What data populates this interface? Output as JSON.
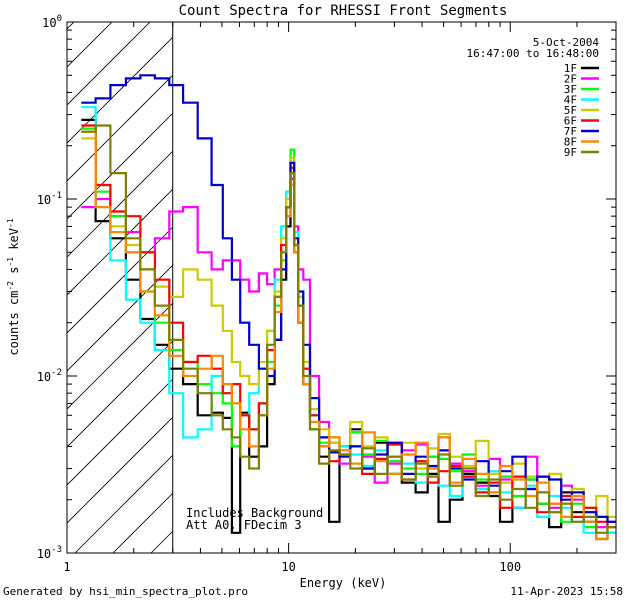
{
  "chart_data": {
    "type": "line",
    "title": "Count Spectra for RHESSI Front Segments",
    "xlabel": "Energy (keV)",
    "ylabel_parts": [
      "counts cm",
      "-2",
      " s",
      "-1",
      " keV",
      "-1"
    ],
    "x_scale": "log",
    "y_scale": "log",
    "xlim": [
      1,
      300
    ],
    "ylim": [
      0.001,
      1
    ],
    "x_ticks": [
      {
        "value": 1,
        "label": "1"
      },
      {
        "value": 10,
        "label": "10"
      },
      {
        "value": 100,
        "label": "100"
      }
    ],
    "y_ticks": [
      {
        "value": 1,
        "base": "10",
        "exp": "0"
      },
      {
        "value": 0.1,
        "base": "10",
        "exp": "-1"
      },
      {
        "value": 0.01,
        "base": "10",
        "exp": "-2"
      },
      {
        "value": 0.001,
        "base": "10",
        "exp": "-3"
      }
    ],
    "shaded_region": {
      "from": 1,
      "to": 3,
      "pattern": "diagonal-hatch"
    },
    "date": "5-Oct-2004",
    "time_range": "16:47:00 to 16:48:00",
    "annotation": [
      "Includes Background",
      "Att A0, FDecim 3"
    ],
    "legend_position": "top-right",
    "series": [
      {
        "name": "1F",
        "color": "#000000",
        "x": [
          1.25,
          1.45,
          1.7,
          2.0,
          2.3,
          2.7,
          3.1,
          3.6,
          4.2,
          4.8,
          5.3,
          5.8,
          6.3,
          7.0,
          7.7,
          8.3,
          9.0,
          9.5,
          10.0,
          10.4,
          10.8,
          11.3,
          12.0,
          13.0,
          14.5,
          16.0,
          18.0,
          20.0,
          23.0,
          26.0,
          30.0,
          35.0,
          40.0,
          45.0,
          50.0,
          57.0,
          65.0,
          75.0,
          85.0,
          95.0,
          110.0,
          125.0,
          140.0,
          160.0,
          180.0,
          200.0,
          230.0,
          260.0,
          290.0
        ],
        "values": [
          0.28,
          0.075,
          0.06,
          0.035,
          0.021,
          0.015,
          0.011,
          0.009,
          0.006,
          0.0062,
          0.0058,
          0.0013,
          0.0062,
          0.0035,
          0.004,
          0.009,
          0.016,
          0.035,
          0.07,
          0.13,
          0.05,
          0.02,
          0.009,
          0.006,
          0.0035,
          0.0015,
          0.004,
          0.005,
          0.003,
          0.0042,
          0.0028,
          0.0025,
          0.0022,
          0.0028,
          0.0015,
          0.002,
          0.0028,
          0.0025,
          0.0021,
          0.0015,
          0.0018,
          0.0026,
          0.0019,
          0.0014,
          0.0022,
          0.0017,
          0.0015,
          0.0012,
          0.0013
        ]
      },
      {
        "name": "2F",
        "color": "#ff00ff",
        "x": [
          1.25,
          1.45,
          1.7,
          2.0,
          2.3,
          2.7,
          3.1,
          3.6,
          4.2,
          4.8,
          5.3,
          5.8,
          6.3,
          7.0,
          7.7,
          8.3,
          9.0,
          9.5,
          10.0,
          10.4,
          10.8,
          11.3,
          12.0,
          13.0,
          14.5,
          16.0,
          18.0,
          20.0,
          23.0,
          26.0,
          30.0,
          35.0,
          40.0,
          45.0,
          50.0,
          57.0,
          65.0,
          75.0,
          85.0,
          95.0,
          110.0,
          125.0,
          140.0,
          160.0,
          180.0,
          200.0,
          230.0,
          260.0,
          290.0
        ],
        "values": [
          0.09,
          0.1,
          0.08,
          0.065,
          0.05,
          0.06,
          0.085,
          0.09,
          0.05,
          0.04,
          0.045,
          0.045,
          0.035,
          0.03,
          0.038,
          0.033,
          0.04,
          0.05,
          0.08,
          0.13,
          0.07,
          0.04,
          0.035,
          0.01,
          0.0055,
          0.0042,
          0.0032,
          0.0048,
          0.0035,
          0.0025,
          0.0032,
          0.0038,
          0.0041,
          0.0035,
          0.0045,
          0.0032,
          0.0029,
          0.0024,
          0.0034,
          0.0026,
          0.0021,
          0.0035,
          0.0027,
          0.0018,
          0.0024,
          0.002,
          0.0017,
          0.0014,
          0.0015
        ]
      },
      {
        "name": "3F",
        "color": "#00ff00",
        "x": [
          1.25,
          1.45,
          1.7,
          2.0,
          2.3,
          2.7,
          3.1,
          3.6,
          4.2,
          4.8,
          5.3,
          5.8,
          6.3,
          7.0,
          7.7,
          8.3,
          9.0,
          9.5,
          10.0,
          10.4,
          10.8,
          11.3,
          12.0,
          13.0,
          14.5,
          16.0,
          18.0,
          20.0,
          23.0,
          26.0,
          30.0,
          35.0,
          40.0,
          45.0,
          50.0,
          57.0,
          65.0,
          75.0,
          85.0,
          95.0,
          110.0,
          125.0,
          140.0,
          160.0,
          180.0,
          200.0,
          230.0,
          260.0,
          290.0
        ],
        "values": [
          0.25,
          0.11,
          0.08,
          0.05,
          0.03,
          0.02,
          0.014,
          0.012,
          0.009,
          0.008,
          0.007,
          0.004,
          0.006,
          0.005,
          0.007,
          0.012,
          0.025,
          0.045,
          0.11,
          0.19,
          0.06,
          0.025,
          0.011,
          0.005,
          0.0042,
          0.0045,
          0.004,
          0.0048,
          0.0036,
          0.0043,
          0.0033,
          0.003,
          0.0028,
          0.0035,
          0.0034,
          0.0029,
          0.0036,
          0.0026,
          0.0022,
          0.0027,
          0.0021,
          0.0026,
          0.0019,
          0.0017,
          0.0015,
          0.0019,
          0.0014,
          0.0016,
          0.0013
        ]
      },
      {
        "name": "4F",
        "color": "#00ffff",
        "x": [
          1.25,
          1.45,
          1.7,
          2.0,
          2.3,
          2.7,
          3.1,
          3.6,
          4.2,
          4.8,
          5.3,
          5.8,
          6.3,
          7.0,
          7.7,
          8.3,
          9.0,
          9.5,
          10.0,
          10.4,
          10.8,
          11.3,
          12.0,
          13.0,
          14.5,
          16.0,
          18.0,
          20.0,
          23.0,
          26.0,
          30.0,
          35.0,
          40.0,
          45.0,
          50.0,
          57.0,
          65.0,
          75.0,
          85.0,
          95.0,
          110.0,
          125.0,
          140.0,
          160.0,
          180.0,
          200.0,
          230.0,
          260.0,
          290.0
        ],
        "values": [
          0.33,
          0.09,
          0.045,
          0.027,
          0.02,
          0.014,
          0.008,
          0.0045,
          0.005,
          0.01,
          0.008,
          0.007,
          0.006,
          0.008,
          0.011,
          0.018,
          0.035,
          0.07,
          0.11,
          0.17,
          0.065,
          0.03,
          0.012,
          0.006,
          0.0045,
          0.0038,
          0.004,
          0.0036,
          0.0031,
          0.0038,
          0.0028,
          0.0032,
          0.0025,
          0.003,
          0.0024,
          0.0021,
          0.0027,
          0.0023,
          0.0029,
          0.0022,
          0.0018,
          0.0024,
          0.0016,
          0.0021,
          0.0018,
          0.0015,
          0.0013,
          0.0012,
          0.0013
        ]
      },
      {
        "name": "5F",
        "color": "#cccc00",
        "x": [
          1.25,
          1.45,
          1.7,
          2.0,
          2.3,
          2.7,
          3.1,
          3.6,
          4.2,
          4.8,
          5.3,
          5.8,
          6.3,
          7.0,
          7.7,
          8.3,
          9.0,
          9.5,
          10.0,
          10.4,
          10.8,
          11.3,
          12.0,
          13.0,
          14.5,
          16.0,
          18.0,
          20.0,
          23.0,
          26.0,
          30.0,
          35.0,
          40.0,
          45.0,
          50.0,
          57.0,
          65.0,
          75.0,
          85.0,
          95.0,
          110.0,
          125.0,
          140.0,
          160.0,
          180.0,
          200.0,
          230.0,
          260.0,
          290.0
        ],
        "values": [
          0.22,
          0.12,
          0.07,
          0.055,
          0.04,
          0.032,
          0.028,
          0.04,
          0.035,
          0.025,
          0.018,
          0.012,
          0.01,
          0.009,
          0.012,
          0.018,
          0.03,
          0.06,
          0.1,
          0.17,
          0.06,
          0.028,
          0.012,
          0.0065,
          0.005,
          0.0042,
          0.0038,
          0.0055,
          0.004,
          0.0045,
          0.0035,
          0.0042,
          0.003,
          0.0039,
          0.0047,
          0.0035,
          0.0031,
          0.0043,
          0.0028,
          0.0025,
          0.0032,
          0.0027,
          0.0022,
          0.0028,
          0.0019,
          0.0023,
          0.0018,
          0.0021,
          0.0016
        ]
      },
      {
        "name": "6F",
        "color": "#ff0000",
        "x": [
          1.25,
          1.45,
          1.7,
          2.0,
          2.3,
          2.7,
          3.1,
          3.6,
          4.2,
          4.8,
          5.3,
          5.8,
          6.3,
          7.0,
          7.7,
          8.3,
          9.0,
          9.5,
          10.0,
          10.4,
          10.8,
          11.3,
          12.0,
          13.0,
          14.5,
          16.0,
          18.0,
          20.0,
          23.0,
          26.0,
          30.0,
          35.0,
          40.0,
          45.0,
          50.0,
          57.0,
          65.0,
          75.0,
          85.0,
          95.0,
          110.0,
          125.0,
          140.0,
          160.0,
          180.0,
          200.0,
          230.0,
          260.0,
          290.0
        ],
        "values": [
          0.26,
          0.12,
          0.085,
          0.08,
          0.05,
          0.035,
          0.02,
          0.012,
          0.013,
          0.011,
          0.008,
          0.009,
          0.006,
          0.005,
          0.007,
          0.014,
          0.028,
          0.055,
          0.09,
          0.15,
          0.055,
          0.025,
          0.011,
          0.006,
          0.004,
          0.0033,
          0.0036,
          0.004,
          0.0028,
          0.0034,
          0.0041,
          0.0026,
          0.0033,
          0.0025,
          0.0029,
          0.0031,
          0.0027,
          0.0022,
          0.0025,
          0.0018,
          0.0027,
          0.0023,
          0.0017,
          0.0019,
          0.0021,
          0.0016,
          0.0018,
          0.0015,
          0.0014
        ]
      },
      {
        "name": "7F",
        "color": "#0000cc",
        "x": [
          1.25,
          1.45,
          1.7,
          2.0,
          2.3,
          2.7,
          3.1,
          3.6,
          4.2,
          4.8,
          5.3,
          5.8,
          6.3,
          7.0,
          7.7,
          8.3,
          9.0,
          9.5,
          10.0,
          10.4,
          10.8,
          11.3,
          12.0,
          13.0,
          14.5,
          16.0,
          18.0,
          20.0,
          23.0,
          26.0,
          30.0,
          35.0,
          40.0,
          45.0,
          50.0,
          57.0,
          65.0,
          75.0,
          85.0,
          95.0,
          110.0,
          125.0,
          140.0,
          160.0,
          180.0,
          200.0,
          230.0,
          260.0,
          290.0
        ],
        "values": [
          0.35,
          0.37,
          0.44,
          0.48,
          0.5,
          0.48,
          0.44,
          0.35,
          0.22,
          0.12,
          0.06,
          0.035,
          0.02,
          0.015,
          0.011,
          0.01,
          0.016,
          0.04,
          0.09,
          0.16,
          0.06,
          0.03,
          0.015,
          0.0075,
          0.0045,
          0.0037,
          0.0035,
          0.004,
          0.003,
          0.0036,
          0.0042,
          0.0028,
          0.0035,
          0.0031,
          0.0038,
          0.003,
          0.0026,
          0.0033,
          0.0024,
          0.0029,
          0.0035,
          0.0023,
          0.0027,
          0.0026,
          0.002,
          0.0022,
          0.0017,
          0.0016,
          0.0015
        ]
      },
      {
        "name": "8F",
        "color": "#ff8800",
        "x": [
          1.25,
          1.45,
          1.7,
          2.0,
          2.3,
          2.7,
          3.1,
          3.6,
          4.2,
          4.8,
          5.3,
          5.8,
          6.3,
          7.0,
          7.7,
          8.3,
          9.0,
          9.5,
          10.0,
          10.4,
          10.8,
          11.3,
          12.0,
          13.0,
          14.5,
          16.0,
          18.0,
          20.0,
          23.0,
          26.0,
          30.0,
          35.0,
          40.0,
          45.0,
          50.0,
          57.0,
          65.0,
          75.0,
          85.0,
          95.0,
          110.0,
          125.0,
          140.0,
          160.0,
          180.0,
          200.0,
          230.0,
          260.0,
          290.0
        ],
        "values": [
          0.24,
          0.09,
          0.065,
          0.05,
          0.03,
          0.022,
          0.013,
          0.01,
          0.011,
          0.013,
          0.009,
          0.007,
          0.005,
          0.004,
          0.006,
          0.011,
          0.023,
          0.05,
          0.08,
          0.12,
          0.05,
          0.02,
          0.009,
          0.0055,
          0.004,
          0.0045,
          0.0038,
          0.0032,
          0.0048,
          0.0033,
          0.0028,
          0.0036,
          0.0042,
          0.003,
          0.0045,
          0.0025,
          0.0034,
          0.0028,
          0.0022,
          0.0031,
          0.0026,
          0.0021,
          0.0025,
          0.0019,
          0.0016,
          0.0021,
          0.0015,
          0.0012,
          0.0014
        ]
      },
      {
        "name": "9F",
        "color": "#808000",
        "x": [
          1.25,
          1.45,
          1.7,
          2.0,
          2.3,
          2.7,
          3.1,
          3.6,
          4.2,
          4.8,
          5.3,
          5.8,
          6.3,
          7.0,
          7.7,
          8.3,
          9.0,
          9.5,
          10.0,
          10.4,
          10.8,
          11.3,
          12.0,
          13.0,
          14.5,
          16.0,
          18.0,
          20.0,
          23.0,
          26.0,
          30.0,
          35.0,
          40.0,
          45.0,
          50.0,
          57.0,
          65.0,
          75.0,
          85.0,
          95.0,
          110.0,
          125.0,
          140.0,
          160.0,
          180.0,
          200.0,
          230.0,
          260.0,
          290.0
        ],
        "values": [
          0.24,
          0.26,
          0.14,
          0.06,
          0.04,
          0.025,
          0.016,
          0.011,
          0.008,
          0.006,
          0.005,
          0.0045,
          0.0035,
          0.003,
          0.006,
          0.015,
          0.028,
          0.05,
          0.09,
          0.14,
          0.055,
          0.025,
          0.01,
          0.005,
          0.0032,
          0.0038,
          0.0036,
          0.003,
          0.0039,
          0.0028,
          0.0035,
          0.0026,
          0.0032,
          0.0027,
          0.0036,
          0.0024,
          0.003,
          0.0021,
          0.0026,
          0.002,
          0.0023,
          0.0018,
          0.0022,
          0.0017,
          0.0019,
          0.0015,
          0.0016,
          0.0013,
          0.0014
        ]
      }
    ]
  },
  "footer": {
    "generated_by": "Generated by hsi_min_spectra_plot.pro",
    "date_stamp": "11-Apr-2023 15:58"
  }
}
